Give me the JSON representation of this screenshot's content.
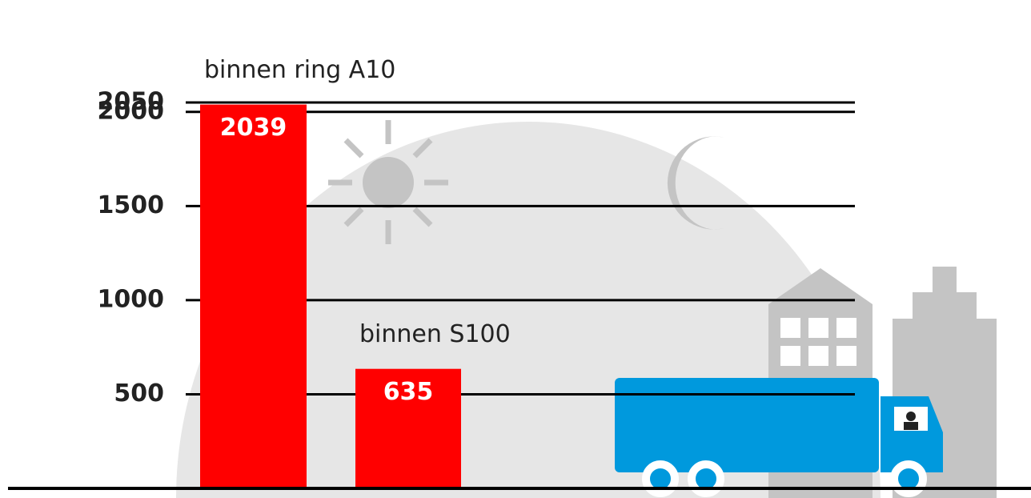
{
  "chart_data": {
    "type": "bar",
    "categories": [
      "binnen ring A10",
      "binnen S100"
    ],
    "values": [
      2039,
      635
    ],
    "color": "#ff0000",
    "ylim": [
      0,
      2050
    ],
    "yticks": [
      500,
      1000,
      1500,
      2000,
      2050
    ],
    "grid": true
  }
}
